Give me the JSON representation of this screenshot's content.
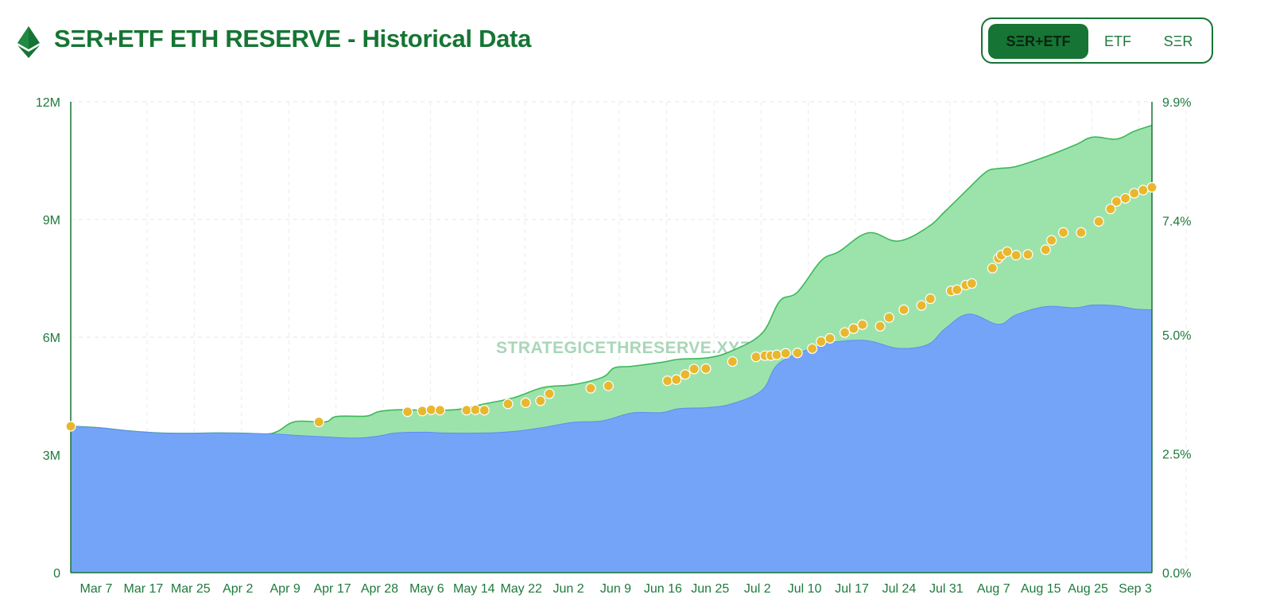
{
  "header": {
    "title": "SΞR+ETF ETH RESERVE - Historical Data",
    "logo_icon": "ethereum-icon",
    "toggle": {
      "options": [
        "SΞR+ETF",
        "ETF",
        "SΞR"
      ],
      "selected": "SΞR+ETF"
    }
  },
  "colors": {
    "brand": "#167534",
    "etf_area": "#74a4f7",
    "total_area": "#9ce3ab",
    "total_line": "#3cb85a",
    "bubble": "#e9b72e"
  },
  "chart_data": {
    "type": "area",
    "title": "SΞR+ETF ETH RESERVE - Historical Data",
    "watermark": "STRATEGICETHRESERVE.XYZ",
    "x_labels": [
      "Mar 7",
      "Mar 17",
      "Mar 25",
      "Apr 2",
      "Apr 9",
      "Apr 17",
      "Apr 28",
      "May 6",
      "May 14",
      "May 22",
      "Jun 2",
      "Jun 9",
      "Jun 16",
      "Jun 25",
      "Jul 2",
      "Jul 10",
      "Jul 17",
      "Jul 24",
      "Jul 31",
      "Aug 7",
      "Aug 15",
      "Aug 25",
      "Sep 3"
    ],
    "x_range_days": [
      0,
      183
    ],
    "y_left": {
      "min": 0,
      "max": 12000000,
      "ticks": [
        0,
        3000000,
        6000000,
        9000000,
        12000000
      ],
      "tick_labels": [
        "0",
        "3M",
        "6M",
        "9M",
        "12M"
      ]
    },
    "y_right": {
      "min": 0,
      "max": 9.9,
      "ticks": [
        0,
        2.5,
        5.0,
        7.4,
        9.9
      ],
      "tick_labels": [
        "0.0%",
        "2.5%",
        "5.0%",
        "7.4%",
        "9.9%"
      ]
    },
    "grid": true,
    "series": [
      {
        "name": "ETF",
        "days": [
          0,
          5,
          10,
          15,
          20,
          25,
          30,
          35,
          38,
          43,
          48,
          52,
          55,
          60,
          63,
          70,
          75,
          80,
          85,
          90,
          95,
          100,
          103,
          108,
          112,
          117,
          120,
          127,
          130,
          135,
          140,
          145,
          148,
          152,
          157,
          160,
          165,
          170,
          173,
          177,
          180,
          183
        ],
        "values": [
          3730000,
          3690000,
          3610000,
          3560000,
          3550000,
          3560000,
          3550000,
          3530000,
          3500000,
          3460000,
          3430000,
          3480000,
          3560000,
          3580000,
          3560000,
          3560000,
          3600000,
          3700000,
          3830000,
          3870000,
          4070000,
          4080000,
          4180000,
          4210000,
          4310000,
          4650000,
          5350000,
          5800000,
          5890000,
          5910000,
          5720000,
          5810000,
          6220000,
          6590000,
          6330000,
          6570000,
          6780000,
          6750000,
          6820000,
          6800000,
          6720000,
          6700000
        ]
      },
      {
        "name": "SΞR+ETF",
        "days": [
          0,
          5,
          10,
          15,
          20,
          25,
          30,
          33,
          35,
          38,
          43,
          45,
          50,
          52,
          55,
          60,
          63,
          66,
          70,
          75,
          80,
          85,
          90,
          92,
          95,
          100,
          103,
          108,
          112,
          117,
          120,
          123,
          127,
          130,
          135,
          140,
          145,
          148,
          152,
          155,
          157,
          160,
          165,
          170,
          173,
          177,
          180,
          183
        ],
        "values": [
          3730000,
          3690000,
          3610000,
          3560000,
          3550000,
          3560000,
          3550000,
          3530000,
          3600000,
          3850000,
          3840000,
          3980000,
          3990000,
          4100000,
          4150000,
          4140000,
          4140000,
          4170000,
          4300000,
          4460000,
          4720000,
          4790000,
          4980000,
          5220000,
          5260000,
          5360000,
          5440000,
          5480000,
          5660000,
          6100000,
          6920000,
          7150000,
          7950000,
          8180000,
          8660000,
          8450000,
          8800000,
          9210000,
          9800000,
          10220000,
          10300000,
          10350000,
          10600000,
          10900000,
          11100000,
          11050000,
          11250000,
          11400000
        ]
      }
    ],
    "bubbles": {
      "days": [
        0,
        42,
        57,
        59.5,
        61,
        62.5,
        67,
        68.5,
        70,
        74,
        77,
        79.5,
        81,
        88,
        91,
        101,
        102.5,
        104,
        105.5,
        107.5,
        112,
        116,
        117.5,
        118.5,
        119.5,
        121,
        123,
        125.5,
        127,
        128.5,
        131,
        132.5,
        134,
        137,
        138.5,
        141,
        144,
        145.5,
        149,
        150,
        151.5,
        152.5,
        156,
        157,
        157.5,
        158.5,
        160,
        162,
        165,
        166,
        168,
        171,
        174,
        176,
        177,
        178.5,
        180,
        181.5,
        183
      ],
      "values": [
        3730000,
        3840000,
        4100000,
        4120000,
        4150000,
        4140000,
        4140000,
        4150000,
        4140000,
        4300000,
        4330000,
        4380000,
        4560000,
        4700000,
        4760000,
        4890000,
        4920000,
        5050000,
        5190000,
        5200000,
        5380000,
        5500000,
        5530000,
        5530000,
        5550000,
        5590000,
        5600000,
        5710000,
        5890000,
        5970000,
        6120000,
        6220000,
        6320000,
        6280000,
        6500000,
        6700000,
        6810000,
        6980000,
        7180000,
        7210000,
        7330000,
        7370000,
        7760000,
        8010000,
        8090000,
        8180000,
        8090000,
        8110000,
        8230000,
        8470000,
        8670000,
        8670000,
        8950000,
        9270000,
        9460000,
        9540000,
        9670000,
        9750000,
        9820000
      ],
      "sizes": [
        6,
        6,
        6,
        6,
        6,
        6,
        6,
        6,
        6,
        6,
        6,
        6,
        6,
        6,
        6,
        6,
        6,
        6,
        6,
        6,
        6,
        6,
        6,
        6,
        6,
        6,
        6,
        6,
        6,
        6,
        6,
        6,
        6,
        6,
        6,
        6,
        6,
        6,
        6,
        6,
        6,
        6,
        6,
        6,
        6,
        6,
        6,
        6,
        6,
        6,
        6,
        6,
        6,
        6,
        6,
        6,
        6,
        6,
        6
      ]
    }
  }
}
